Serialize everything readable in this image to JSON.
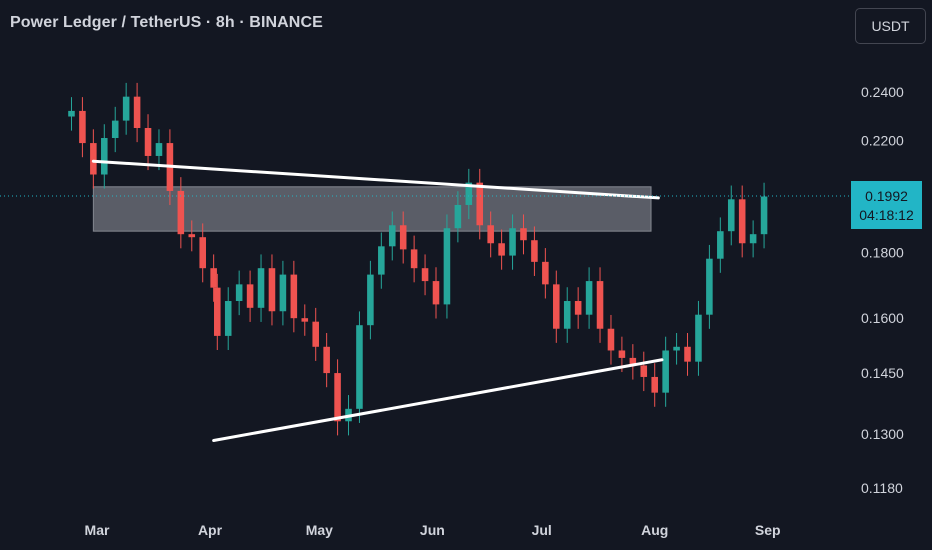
{
  "header": {
    "title": "Power Ledger / TetherUS · 8h · BINANCE"
  },
  "currency_button": {
    "label": "USDT"
  },
  "last_price": {
    "value": "0.1992",
    "countdown": "04:18:12"
  },
  "colors": {
    "background": "#131722",
    "up": "#26a69a",
    "down": "#ef5350",
    "axis_text": "#d1d4dc",
    "accent": "#22b5c6",
    "lines": "#ffffff",
    "zone": "#9598a1"
  },
  "chart_data": {
    "type": "candlestick",
    "title": "Power Ledger / TetherUS · 8h · BINANCE",
    "x_ticks": [
      "Mar",
      "Apr",
      "May",
      "Jun",
      "Jul",
      "Aug",
      "Sep"
    ],
    "y_ticks": [
      "0.2400",
      "0.2200",
      "0.1800",
      "0.1600",
      "0.1450",
      "0.1300",
      "0.1180"
    ],
    "y_tick_values": [
      0.24,
      0.22,
      0.18,
      0.16,
      0.145,
      0.13,
      0.118
    ],
    "y_scale": "log",
    "x_range": [
      "2023-02-22",
      "2023-09-28"
    ],
    "grid": false,
    "series": [
      {
        "close": [
          0.232,
          0.219,
          0.207,
          0.221,
          0.228,
          0.238,
          0.225,
          0.214,
          0.219,
          0.201,
          0.186,
          0.185,
          0.175,
          0.169,
          0.155,
          0.165,
          0.17,
          0.163,
          0.175,
          0.162,
          0.173,
          0.16,
          0.159,
          0.152,
          0.145,
          0.133,
          0.136,
          0.158,
          0.173,
          0.182,
          0.189,
          0.181,
          0.175,
          0.171,
          0.164,
          0.188,
          0.196,
          0.204,
          0.189,
          0.183,
          0.179,
          0.188,
          0.184,
          0.177,
          0.17,
          0.157,
          0.165,
          0.161,
          0.171,
          0.157,
          0.151,
          0.149,
          0.147,
          0.144,
          0.14,
          0.151,
          0.152,
          0.148,
          0.161,
          0.178,
          0.187,
          0.198,
          0.183,
          0.186,
          0.199
        ]
      }
    ],
    "x_dates": [
      "2023-02-22",
      "2023-02-25",
      "2023-02-28",
      "2023-03-03",
      "2023-03-06",
      "2023-03-09",
      "2023-03-12",
      "2023-03-15",
      "2023-03-18",
      "2023-03-21",
      "2023-03-24",
      "2023-03-27",
      "2023-03-30",
      "2023-04-02",
      "2023-04-03",
      "2023-04-06",
      "2023-04-09",
      "2023-04-12",
      "2023-04-15",
      "2023-04-18",
      "2023-04-21",
      "2023-04-24",
      "2023-04-27",
      "2023-04-30",
      "2023-05-03",
      "2023-05-06",
      "2023-05-09",
      "2023-05-12",
      "2023-05-15",
      "2023-05-18",
      "2023-05-21",
      "2023-05-24",
      "2023-05-27",
      "2023-05-30",
      "2023-06-02",
      "2023-06-05",
      "2023-06-08",
      "2023-06-11",
      "2023-06-14",
      "2023-06-17",
      "2023-06-20",
      "2023-06-23",
      "2023-06-26",
      "2023-06-29",
      "2023-07-02",
      "2023-07-05",
      "2023-07-08",
      "2023-07-11",
      "2023-07-14",
      "2023-07-17",
      "2023-07-20",
      "2023-07-23",
      "2023-07-26",
      "2023-07-29",
      "2023-08-01",
      "2023-08-04",
      "2023-08-07",
      "2023-08-10",
      "2023-08-13",
      "2023-08-16",
      "2023-08-19",
      "2023-08-22",
      "2023-08-25",
      "2023-08-28",
      "2023-08-31"
    ],
    "annotations": {
      "resistance_line": {
        "from": {
          "x": "2023-02-28",
          "y": 0.212
        },
        "to": {
          "x": "2023-08-02",
          "y": 0.1985
        }
      },
      "support_line": {
        "from": {
          "x": "2023-04-02",
          "y": 0.1285
        },
        "to": {
          "x": "2023-08-03",
          "y": 0.1485
        }
      },
      "resistance_zone": {
        "x_from": "2023-02-28",
        "x_to": "2023-07-31",
        "y_from": 0.187,
        "y_to": 0.2025
      },
      "last_price_line": 0.1992
    }
  }
}
